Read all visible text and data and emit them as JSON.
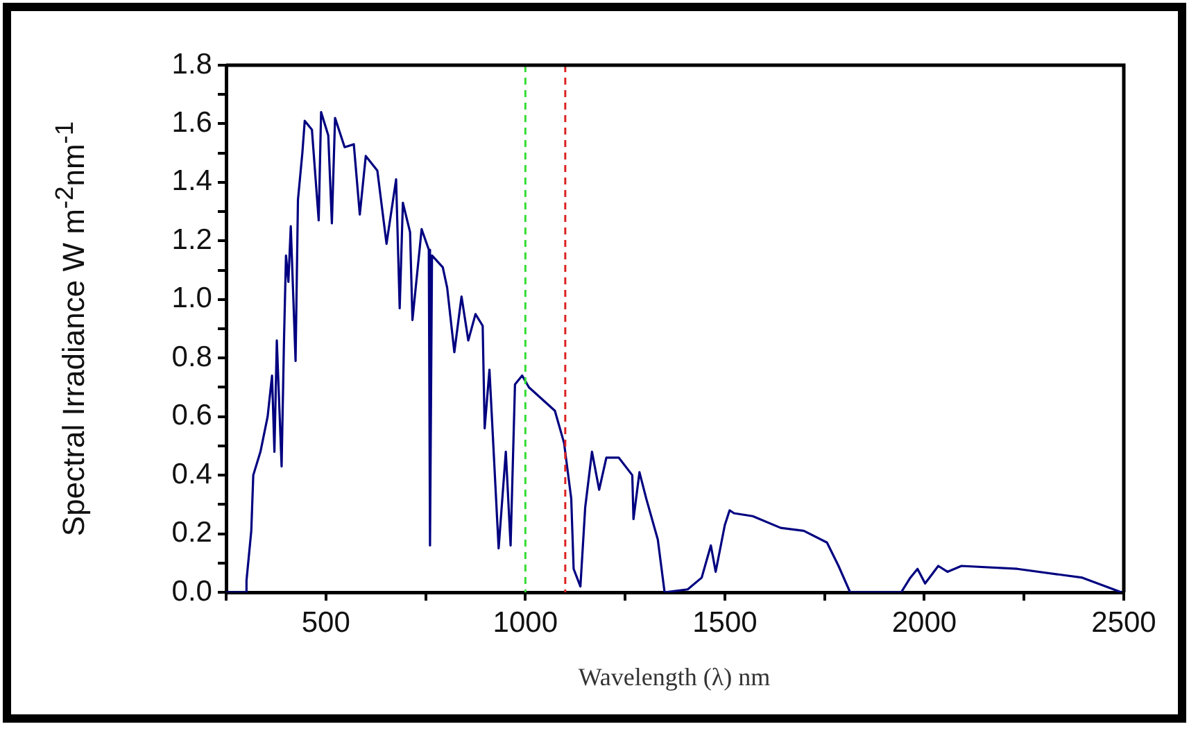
{
  "chart_data": {
    "type": "line",
    "xlabel": "Wavelength (λ) nm",
    "ylabel": "Spectral Irradiance W m$^{-2}$nm$^{-1}$",
    "xlim": [
      250,
      2500
    ],
    "xticks": [
      {
        "value": 250,
        "label": null
      },
      500,
      {
        "value": 750,
        "label": null
      },
      1000,
      {
        "value": 1250,
        "label": null
      },
      1500,
      {
        "value": 1750,
        "label": null
      },
      2000,
      {
        "value": 2250,
        "label": null
      },
      2500
    ],
    "ylim": [
      0,
      1.8
    ],
    "yticks": [
      {
        "value": 0,
        "label": "0.0"
      },
      {
        "value": 0.1,
        "label": null
      },
      0.2,
      {
        "value": 0.3,
        "label": null
      },
      0.4,
      {
        "value": 0.5,
        "label": null
      },
      0.6,
      {
        "value": 0.7,
        "label": null
      },
      0.8,
      {
        "value": 0.9,
        "label": null
      },
      {
        "value": 1,
        "label": "1.0"
      },
      {
        "value": 1.1,
        "label": null
      },
      1.2,
      {
        "value": 1.3,
        "label": null
      },
      1.4,
      {
        "value": 1.5,
        "label": null
      },
      1.6,
      {
        "value": 1.7,
        "label": null
      },
      1.8
    ],
    "grid": false,
    "legend": false,
    "marker": "none",
    "line_style": "solid",
    "ref_lines": [
      {
        "axis": "x",
        "value": 1000,
        "label": null,
        "color": "#33dd33",
        "line_style": "dashed"
      },
      {
        "axis": "x",
        "value": 1100,
        "label": null,
        "color": "#dd2222",
        "line_style": "dashed"
      }
    ],
    "series": [
      {
        "color": "#000080",
        "x": [
          250,
          300,
          301,
          313,
          318,
          336,
          354,
          365,
          371,
          377,
          389,
          395,
          400,
          406,
          412,
          424,
          430,
          441,
          447,
          465,
          482,
          488,
          506,
          515,
          523,
          547,
          570,
          585,
          600,
          629,
          652,
          676,
          685,
          693,
          711,
          717,
          740,
          758,
          761,
          766,
          793,
          804,
          822,
          840,
          857,
          875,
          893,
          898,
          910,
          933,
          951,
          963,
          974,
          992,
          1009,
          1074,
          1097,
          1115,
          1121,
          1138,
          1150,
          1167,
          1185,
          1203,
          1234,
          1268,
          1271,
          1286,
          1303,
          1332,
          1349,
          1407,
          1442,
          1465,
          1477,
          1500,
          1512,
          1523,
          1570,
          1640,
          1698,
          1756,
          1785,
          1814,
          1942,
          1965,
          1983,
          2002,
          2035,
          2058,
          2093,
          2233,
          2396,
          2494
        ],
        "values": [
          0,
          0,
          0.04,
          0.21,
          0.4,
          0.48,
          0.6,
          0.74,
          0.48,
          0.86,
          0.43,
          0.86,
          1.15,
          1.06,
          1.25,
          0.79,
          1.34,
          1.5,
          1.61,
          1.58,
          1.27,
          1.64,
          1.56,
          1.26,
          1.62,
          1.52,
          1.53,
          1.29,
          1.49,
          1.44,
          1.19,
          1.41,
          0.97,
          1.33,
          1.23,
          0.93,
          1.24,
          1.17,
          0.16,
          1.15,
          1.11,
          1.04,
          0.82,
          1.01,
          0.86,
          0.95,
          0.91,
          0.56,
          0.76,
          0.15,
          0.48,
          0.16,
          0.71,
          0.74,
          0.7,
          0.62,
          0.51,
          0.32,
          0.08,
          0.02,
          0.29,
          0.48,
          0.35,
          0.46,
          0.46,
          0.4,
          0.25,
          0.41,
          0.32,
          0.18,
          0,
          0.01,
          0.05,
          0.16,
          0.07,
          0.23,
          0.28,
          0.27,
          0.26,
          0.22,
          0.21,
          0.17,
          0.09,
          0,
          0,
          0.05,
          0.08,
          0.03,
          0.09,
          0.07,
          0.09,
          0.08,
          0.05,
          0
        ]
      }
    ]
  }
}
